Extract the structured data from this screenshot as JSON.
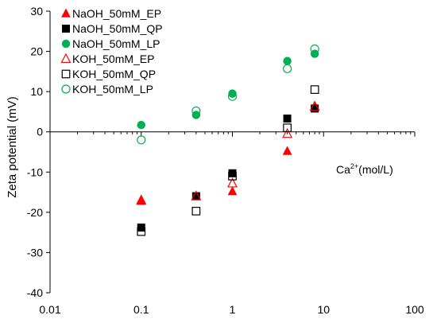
{
  "chart_data": {
    "type": "scatter",
    "title": "",
    "xlabel": "",
    "ylabel": "Zeta potential (mV)",
    "x_scale": "log",
    "xlim": [
      0.01,
      100
    ],
    "ylim": [
      -40,
      30
    ],
    "x_ticks": [
      0.01,
      0.1,
      1,
      10,
      100
    ],
    "x_tick_labels": [
      "0.01",
      "0.1",
      "1",
      "10",
      "100"
    ],
    "y_ticks": [
      -40,
      -30,
      -20,
      -10,
      0,
      10,
      20,
      30
    ],
    "y_tick_labels": [
      "-40",
      "-30",
      "-20",
      "-10",
      "0",
      "10",
      "20",
      "30"
    ],
    "x_axis_crosses_at_y": 0,
    "grid": false,
    "legend_position": "top-left",
    "annotation": {
      "base": "Ca",
      "sup": "2+",
      "rest": "(mol/L)"
    },
    "series": [
      {
        "name": "NaOH_50mM_EP",
        "marker": "triangle",
        "filled": true,
        "color": "#ff0000",
        "x": [
          0.1,
          0.4,
          1,
          4,
          8
        ],
        "y": [
          -17.2,
          -16,
          -14.8,
          -4.8,
          6.5
        ]
      },
      {
        "name": "NaOH_50mM_QP",
        "marker": "square",
        "filled": true,
        "color": "#000000",
        "x": [
          0.1,
          0.4,
          1,
          4,
          8
        ],
        "y": [
          -23.8,
          -16,
          -10.3,
          3.3,
          5.8
        ]
      },
      {
        "name": "NaOH_50mM_LP",
        "marker": "circle",
        "filled": true,
        "color": "#00b050",
        "x": [
          0.1,
          0.4,
          1,
          4,
          8
        ],
        "y": [
          1.7,
          4.2,
          9.5,
          17.6,
          19.4
        ]
      },
      {
        "name": "KOH_50mM_EP",
        "marker": "triangle",
        "filled": false,
        "color": "#ff0000",
        "x": [
          0.1,
          0.4,
          1,
          4,
          8
        ],
        "y": [
          -17,
          -16,
          -12.8,
          -0.5,
          6.2
        ]
      },
      {
        "name": "KOH_50mM_QP",
        "marker": "square",
        "filled": false,
        "color": "#000000",
        "x": [
          0.1,
          0.4,
          1,
          4,
          8
        ],
        "y": [
          -24.8,
          -19.7,
          -11,
          1,
          10.5
        ]
      },
      {
        "name": "KOH_50mM_LP",
        "marker": "circle",
        "filled": false,
        "color": "#00b050",
        "x": [
          0.1,
          0.4,
          1,
          4,
          8
        ],
        "y": [
          -2,
          5.2,
          8.8,
          15.7,
          20.6
        ]
      }
    ]
  }
}
